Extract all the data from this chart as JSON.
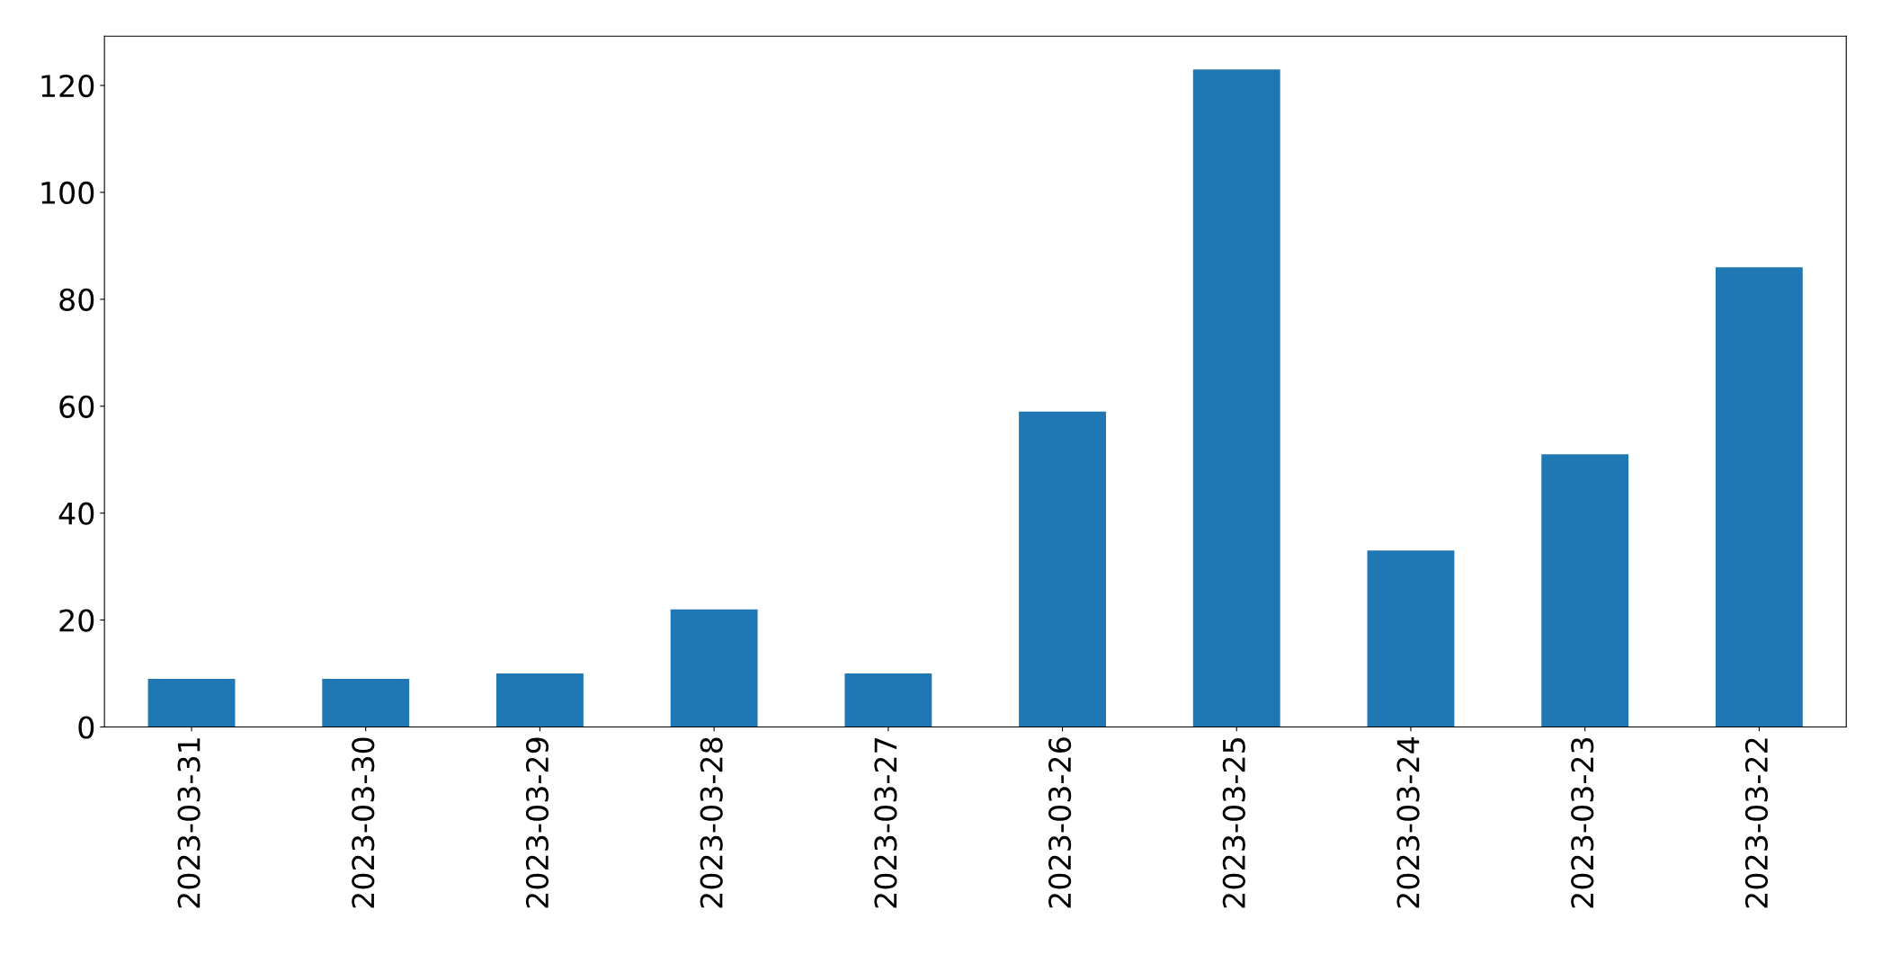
{
  "chart_data": {
    "type": "bar",
    "categories": [
      "2023-03-31",
      "2023-03-30",
      "2023-03-29",
      "2023-03-28",
      "2023-03-27",
      "2023-03-26",
      "2023-03-25",
      "2023-03-24",
      "2023-03-23",
      "2023-03-22"
    ],
    "values": [
      9,
      9,
      10,
      22,
      10,
      59,
      123,
      33,
      51,
      86
    ],
    "color": "#1f77b4",
    "ylim": [
      0,
      129.2
    ],
    "yticks": [
      0,
      20,
      40,
      60,
      80,
      100,
      120
    ],
    "grid": false,
    "legend": false
  }
}
